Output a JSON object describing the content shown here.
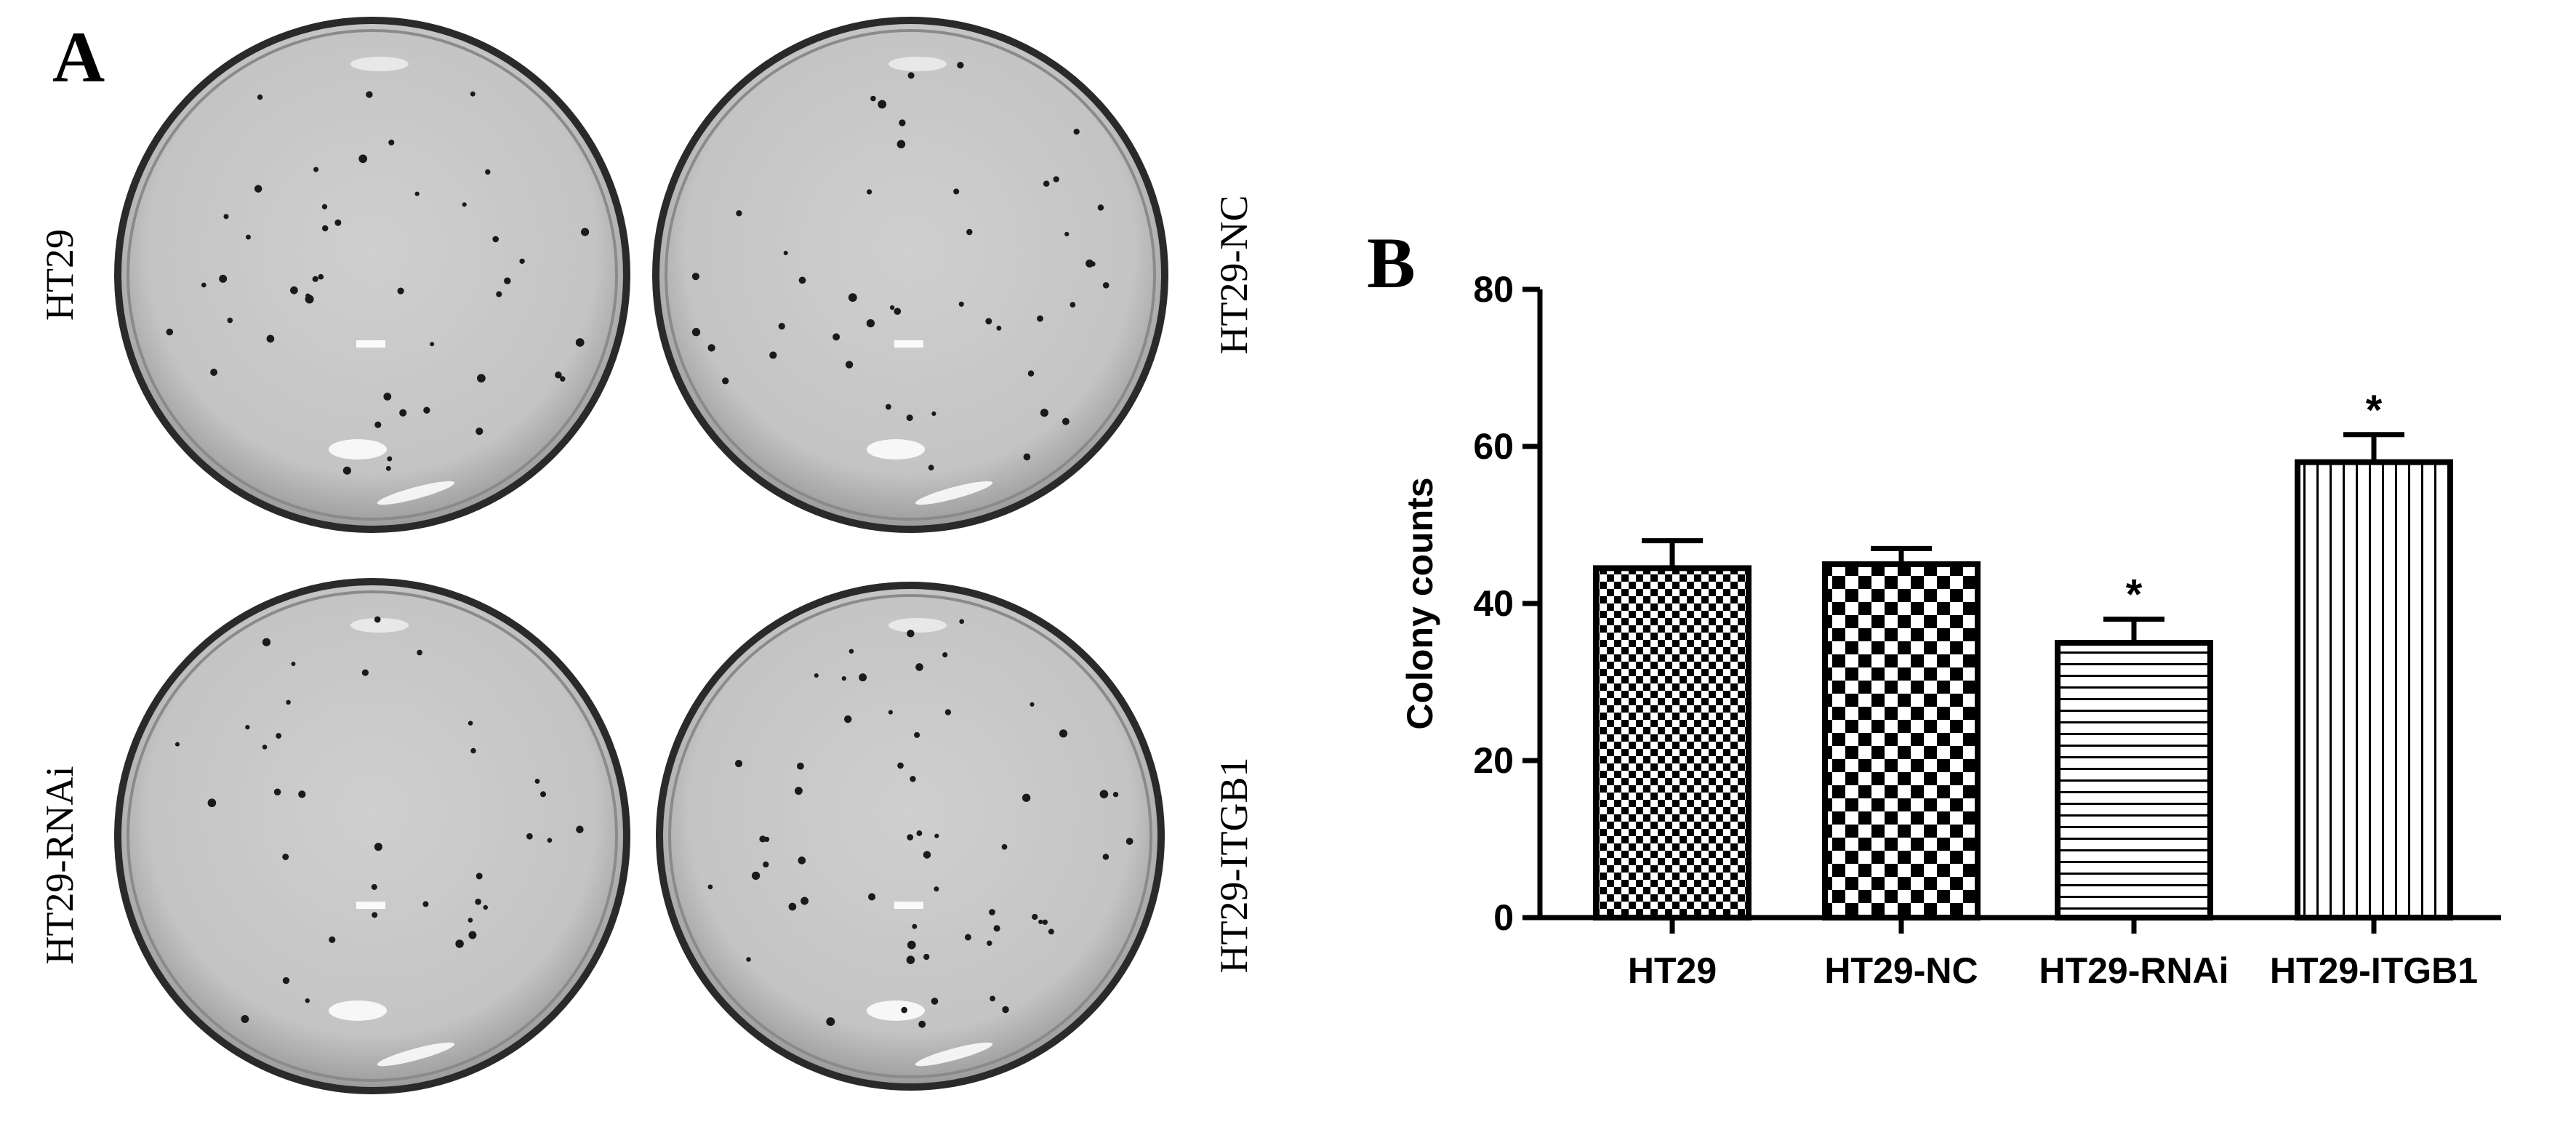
{
  "panel_a": {
    "letter": "A",
    "dishes": [
      {
        "label": "HT29"
      },
      {
        "label": "HT29-NC"
      },
      {
        "label": "HT29-RNAi"
      },
      {
        "label": "HT29-ITGB1"
      }
    ]
  },
  "panel_b": {
    "letter": "B"
  },
  "chart_data": {
    "type": "bar",
    "categories": [
      "HT29",
      "HT29-NC",
      "HT29-RNAi",
      "HT29-ITGB1"
    ],
    "values": [
      44.5,
      45,
      35,
      58
    ],
    "errors": [
      3.5,
      2,
      3,
      3.5
    ],
    "significance": [
      "",
      "",
      "*",
      "*"
    ],
    "ylabel": "Colony counts",
    "xlabel": "",
    "ylim": [
      0,
      80
    ],
    "yticks": [
      0,
      20,
      40,
      60,
      80
    ],
    "patterns": [
      "fine-checker",
      "coarse-checker",
      "horizontal-lines",
      "vertical-lines"
    ],
    "grid": false,
    "legend": "none",
    "colors": {
      "ink": "#000000",
      "background": "#ffffff",
      "dish": "#c8c8c8",
      "dish_rim": "#2a2a2a",
      "colony": "#1a1a1a"
    }
  }
}
